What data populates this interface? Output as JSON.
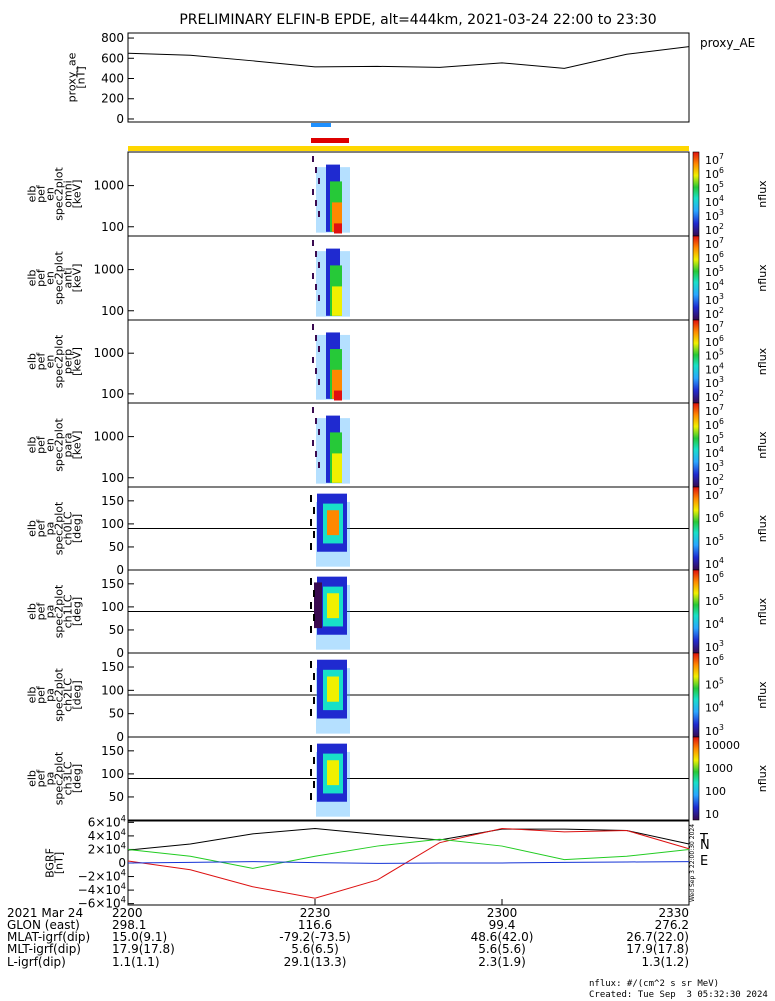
{
  "title": "PRELIMINARY ELFIN-B EPDE, alt=444km, 2021-03-24 22:00 to 23:30",
  "colors": {
    "black": "#000000",
    "blue": "#1433d6",
    "red": "#dd1111",
    "green": "#22cc22",
    "yellow": "#ffd700",
    "science_blue": "#1e90ff",
    "science_red": "#dd0000"
  },
  "chart_data": [
    {
      "type": "line",
      "panel": "proxy_ae",
      "ylabel": "proxy_ae\n[nT]",
      "legend": "proxy_AE",
      "yticks": [
        "800",
        "600",
        "400",
        "200",
        "0"
      ],
      "ylim": [
        -30,
        850
      ],
      "x_minutes": [
        0,
        10,
        20,
        30,
        40,
        50,
        60,
        70,
        80,
        90
      ],
      "values": [
        650,
        630,
        575,
        515,
        520,
        510,
        555,
        500,
        640,
        715
      ]
    },
    {
      "type": "heatmap",
      "panel": "omni",
      "ylabel": "elb\npef\nen\nspec2plot\nomni\n[keV]",
      "yticks": [
        "1000",
        "100"
      ],
      "colorbar": {
        "ticks": [
          "10^7",
          "10^6",
          "10^5",
          "10^4",
          "10^3",
          "10^2"
        ],
        "label": "nflux"
      }
    },
    {
      "type": "heatmap",
      "panel": "anti",
      "ylabel": "elb\npef\nen\nspec2plot\nanti\n[keV]",
      "yticks": [
        "1000",
        "100"
      ],
      "colorbar": {
        "ticks": [
          "10^7",
          "10^6",
          "10^5",
          "10^4",
          "10^3",
          "10^2"
        ],
        "label": "nflux"
      }
    },
    {
      "type": "heatmap",
      "panel": "perp",
      "ylabel": "elb\npef\nen\nspec2plot\nperp\n[keV]",
      "yticks": [
        "1000",
        "100"
      ],
      "colorbar": {
        "ticks": [
          "10^7",
          "10^6",
          "10^5",
          "10^4",
          "10^3",
          "10^2"
        ],
        "label": "nflux"
      }
    },
    {
      "type": "heatmap",
      "panel": "para",
      "ylabel": "elb\npef\nen\nspec2plot\npara\n[keV]",
      "yticks": [
        "1000",
        "100"
      ],
      "colorbar": {
        "ticks": [
          "10^7",
          "10^6",
          "10^5",
          "10^4",
          "10^3",
          "10^2"
        ],
        "label": "nflux"
      }
    },
    {
      "type": "heatmap",
      "panel": "ch0LC",
      "ylabel": "elb\npef\npa\nspec2plot\nch0LC\n[deg]",
      "yticks": [
        "150",
        "100",
        "50",
        "0"
      ],
      "colorbar": {
        "ticks": [
          "10^7",
          "10^6",
          "10^5",
          "10^4"
        ],
        "label": "nflux"
      }
    },
    {
      "type": "heatmap",
      "panel": "ch1LC",
      "ylabel": "elb\npef\npa\nspec2plot\nch1LC\n[deg]",
      "yticks": [
        "150",
        "100",
        "50",
        "0"
      ],
      "colorbar": {
        "ticks": [
          "10^6",
          "10^5",
          "10^4",
          "10^3"
        ],
        "label": "nflux"
      }
    },
    {
      "type": "heatmap",
      "panel": "ch2LC",
      "ylabel": "elb\npef\npa\nspec2plot\nch2LC\n[deg]",
      "yticks": [
        "150",
        "100",
        "50",
        "0"
      ],
      "colorbar": {
        "ticks": [
          "10^6",
          "10^5",
          "10^4",
          "10^3"
        ],
        "label": "nflux"
      }
    },
    {
      "type": "heatmap",
      "panel": "ch3LC",
      "ylabel": "elb\npef\npa\nspec2plot\nch3LC\n[deg]",
      "yticks": [
        "150",
        "100",
        "50"
      ],
      "colorbar": {
        "ticks": [
          "10000",
          "1000",
          "100",
          "10"
        ],
        "label": "nflux"
      }
    },
    {
      "type": "line",
      "panel": "BGRF",
      "ylabel": "BGRF\n[nT]",
      "yticks": [
        "6×10^4",
        "4×10^4",
        "2×10^4",
        "0",
        "−2×10^4",
        "−4×10^4",
        "−6×10^4"
      ],
      "ylim": [
        -62000,
        62000
      ],
      "x_minutes": [
        0,
        10,
        20,
        30,
        40,
        50,
        60,
        70,
        80,
        90
      ],
      "series": [
        {
          "name": "T",
          "values": [
            19000,
            28000,
            43000,
            51000,
            42000,
            34000,
            50000,
            50000,
            48000,
            28000
          ]
        },
        {
          "name": "N",
          "values": [
            3000,
            -10000,
            -35000,
            -52000,
            -25000,
            30000,
            51000,
            46000,
            48000,
            21000
          ]
        },
        {
          "name": "E",
          "values": [
            20000,
            10000,
            -8000,
            10000,
            25000,
            35000,
            25000,
            5000,
            10000,
            20000
          ]
        },
        {
          "name": "",
          "values": [
            0,
            1000,
            2000,
            500,
            -500,
            0,
            0,
            1000,
            1500,
            2000
          ]
        }
      ]
    }
  ],
  "bgrf_labels": {
    "t": "T",
    "n": "N",
    "e": "E"
  },
  "side_stamp": "Wed Sep 3 22:00:30 2024",
  "xaxis": {
    "ticks": [
      "2200",
      "2230",
      "2300",
      "2330"
    ],
    "rows": [
      {
        "label": "2021 Mar 24",
        "vals": [
          "2200",
          "2230",
          "2300",
          "2330"
        ]
      },
      {
        "label": "GLON (east)",
        "vals": [
          "298.1",
          "116.6",
          "99.4",
          "276.2"
        ]
      },
      {
        "label": "MLAT-igrf(dip)",
        "vals": [
          "15.0(9.1)",
          "-79.2(-73.5)",
          "48.6(42.0)",
          "26.7(22.0)"
        ]
      },
      {
        "label": "MLT-igrf(dip)",
        "vals": [
          "17.9(17.8)",
          "5.6(6.5)",
          "5.6(5.6)",
          "17.9(17.8)"
        ]
      },
      {
        "label": "L-igrf(dip)",
        "vals": [
          "1.1(1.1)",
          "29.1(13.3)",
          "2.3(1.9)",
          "1.3(1.2)"
        ]
      }
    ]
  },
  "footer": {
    "units": "nflux: #/(cm^2 s sr MeV)",
    "created": "Created: Tue Sep  3 05:32:30 2024"
  }
}
